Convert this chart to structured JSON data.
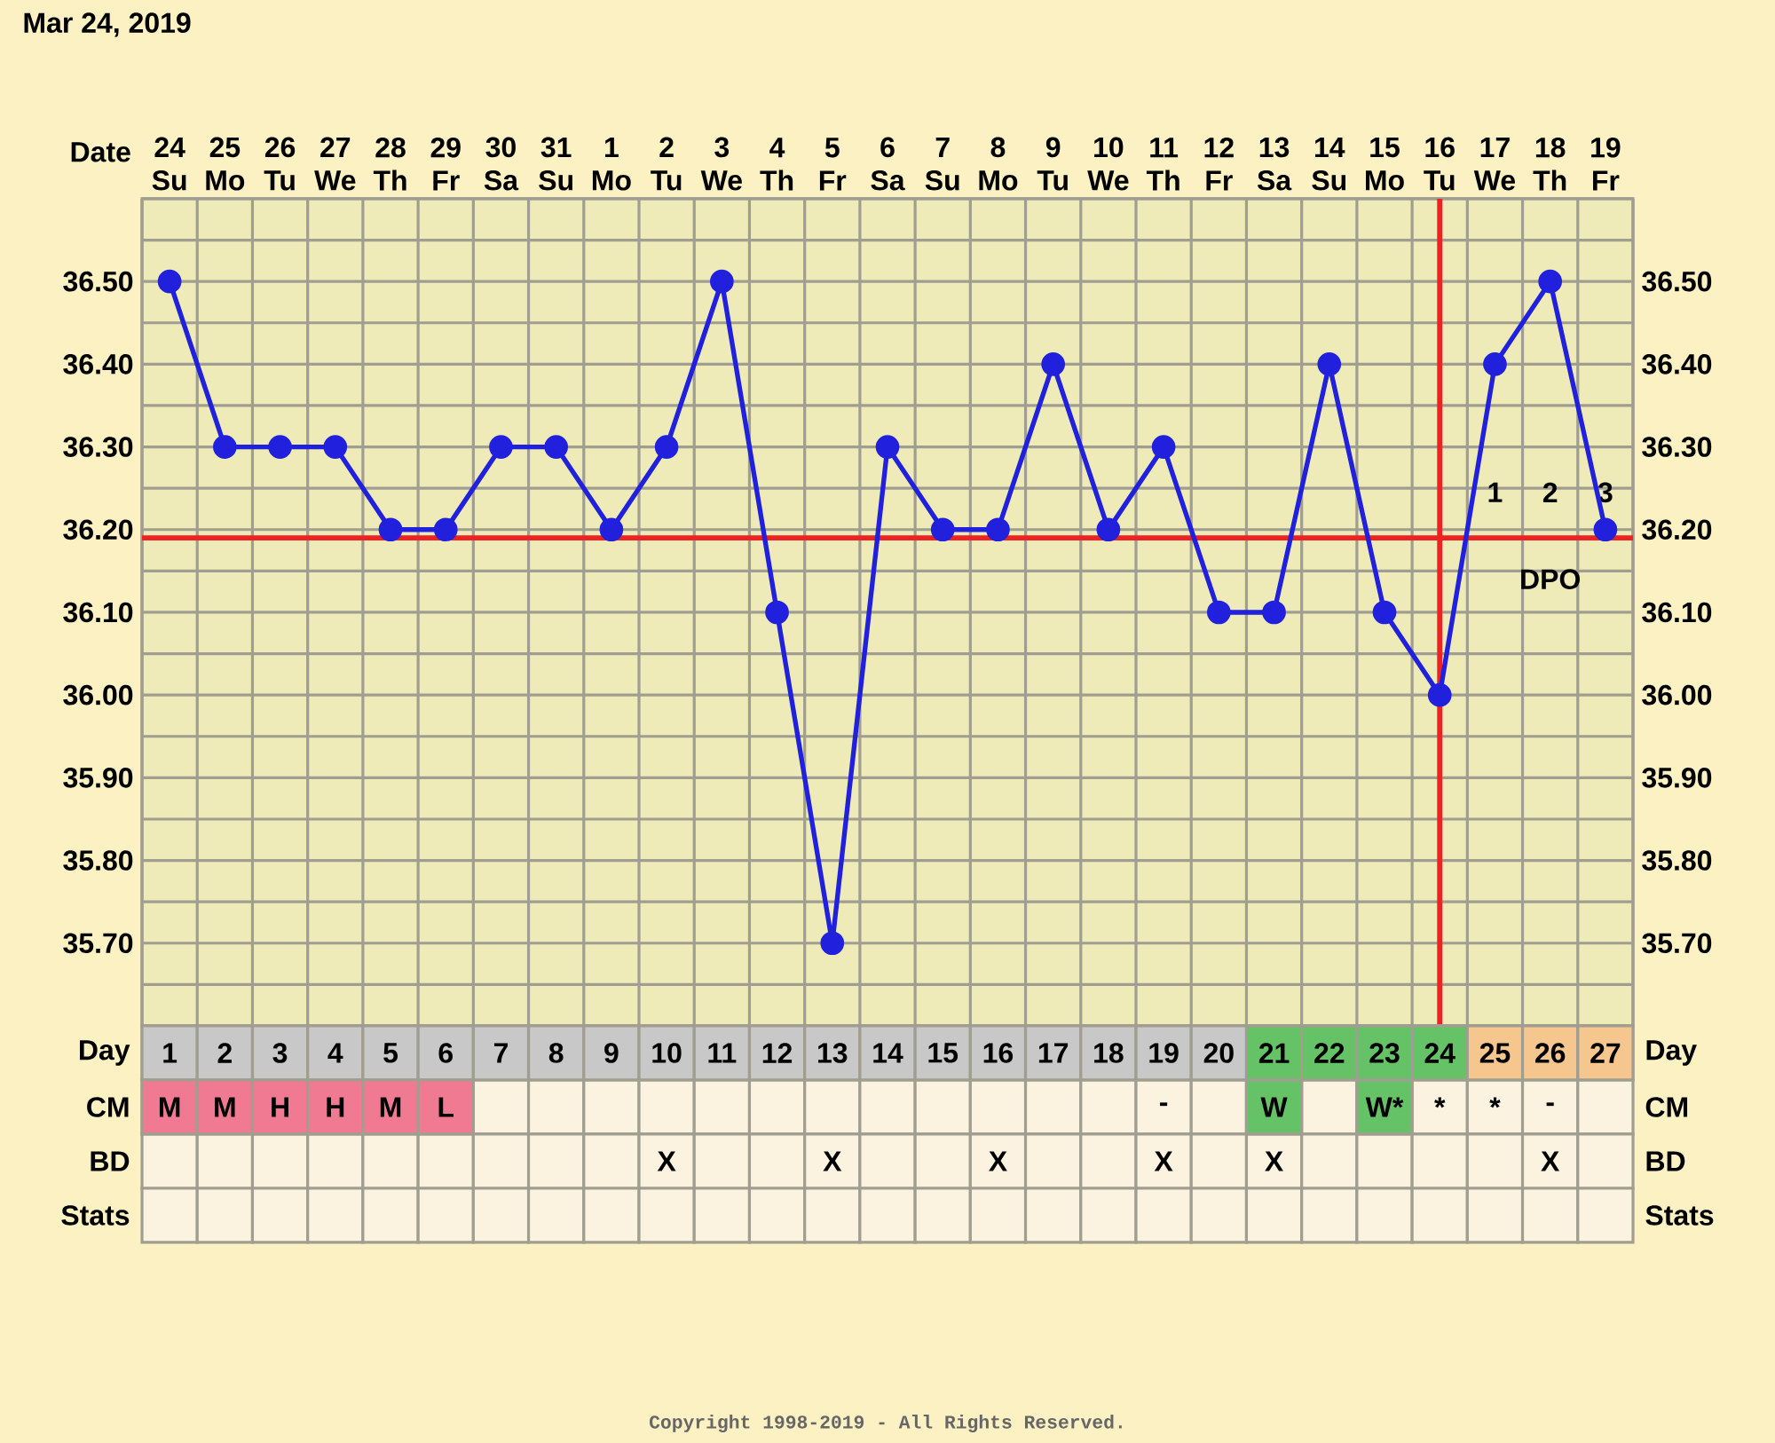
{
  "chart_data": [
    {
      "type": "line",
      "title": "Mar 24, 2019",
      "xlabel": "Date",
      "categories": [
        "24 Su",
        "25 Mo",
        "26 Tu",
        "27 We",
        "28 Th",
        "29 Fr",
        "30 Sa",
        "31 Su",
        "1 Mo",
        "2 Tu",
        "3 We",
        "4 Th",
        "5 Fr",
        "6 Sa",
        "7 Su",
        "8 Mo",
        "9 Tu",
        "10 We",
        "11 Th",
        "12 Fr",
        "13 Sa",
        "14 Su",
        "15 Mo",
        "16 Tu",
        "17 We",
        "18 Th",
        "19 Fr"
      ],
      "values": [
        36.5,
        36.3,
        36.3,
        36.3,
        36.2,
        36.2,
        36.3,
        36.3,
        36.2,
        36.3,
        36.5,
        36.1,
        35.7,
        36.3,
        36.2,
        36.2,
        36.4,
        36.2,
        36.3,
        36.1,
        36.1,
        36.4,
        36.1,
        36.0,
        36.4,
        36.5,
        36.2
      ],
      "color": "#2020dd",
      "marker": "circle",
      "line_style": "solid",
      "ylim": [
        35.6,
        36.6
      ],
      "yticks": [
        {
          "value": 35.7,
          "label": "35.70"
        },
        {
          "value": 35.8,
          "label": "35.80"
        },
        {
          "value": 35.9,
          "label": "35.90"
        },
        {
          "value": 36.0,
          "label": "36.00"
        },
        {
          "value": 36.1,
          "label": "36.10"
        },
        {
          "value": 36.2,
          "label": "36.20"
        },
        {
          "value": 36.3,
          "label": "36.30"
        },
        {
          "value": 36.4,
          "label": "36.40"
        },
        {
          "value": 36.5,
          "label": "36.50"
        }
      ],
      "y2lim": [
        35.6,
        36.6
      ],
      "y2ticks": [
        {
          "value": 35.7,
          "label": "35.70"
        },
        {
          "value": 35.8,
          "label": "35.80"
        },
        {
          "value": 35.9,
          "label": "35.90"
        },
        {
          "value": 36.0,
          "label": "36.00"
        },
        {
          "value": 36.1,
          "label": "36.10"
        },
        {
          "value": 36.2,
          "label": "36.20"
        },
        {
          "value": 36.3,
          "label": "36.30"
        },
        {
          "value": 36.4,
          "label": "36.40"
        },
        {
          "value": 36.5,
          "label": "36.50"
        }
      ],
      "grid": true,
      "ref_lines": [
        {
          "axis": "y",
          "value": 36.19,
          "color": "#ee2222"
        },
        {
          "axis": "x",
          "value": "16 Tu",
          "color": "#ee2222"
        }
      ],
      "annotations": [
        "1",
        "2",
        "3",
        "DPO",
        "Copyright 1998-2019 - All Rights Reserved."
      ]
    },
    {
      "type": "heatmap",
      "categories": [
        "1",
        "2",
        "3",
        "4",
        "5",
        "6",
        "7",
        "8",
        "9",
        "10",
        "11",
        "12",
        "13",
        "14",
        "15",
        "16",
        "17",
        "18",
        "19",
        "20",
        "21",
        "22",
        "23",
        "24",
        "25",
        "26",
        "27"
      ],
      "y_categories": [
        "Day",
        "CM",
        "BD",
        "Stats"
      ],
      "y2_categories": [
        "Day",
        "CM",
        "BD",
        "Stats"
      ],
      "cells": [
        [
          null,
          null,
          null,
          null,
          null,
          null,
          null,
          null,
          null,
          null,
          null,
          null,
          null,
          null,
          null,
          null,
          null,
          null,
          null,
          null,
          null,
          null,
          null,
          null,
          null,
          null,
          null
        ],
        [
          null,
          null,
          null,
          null,
          null,
          null,
          null,
          null,
          null,
          null,
          null,
          null,
          null,
          null,
          null,
          null,
          null,
          null,
          null,
          null,
          null,
          null,
          null,
          null,
          null,
          null,
          null
        ],
        [
          null,
          null,
          null,
          null,
          null,
          null,
          null,
          null,
          null,
          null,
          null,
          null,
          null,
          null,
          null,
          null,
          null,
          null,
          null,
          null,
          null,
          null,
          null,
          null,
          null,
          null,
          null
        ],
        [
          null,
          null,
          null,
          null,
          null,
          null,
          null,
          null,
          null,
          null,
          null,
          null,
          null,
          null,
          null,
          null,
          null,
          null,
          null,
          null,
          null,
          null,
          null,
          null,
          null,
          null,
          null
        ]
      ],
      "cell_labels": [
        [
          null,
          null,
          null,
          null,
          null,
          null,
          null,
          null,
          null,
          null,
          null,
          null,
          null,
          null,
          null,
          null,
          null,
          null,
          null,
          null,
          null,
          null,
          null,
          null,
          null,
          null,
          null
        ],
        [
          "M",
          "M",
          "H",
          "H",
          "M",
          "L",
          null,
          null,
          null,
          null,
          null,
          null,
          null,
          null,
          null,
          null,
          null,
          null,
          "-",
          null,
          "W",
          null,
          "W*",
          "*",
          "*",
          "-",
          null
        ],
        [
          null,
          null,
          null,
          null,
          null,
          null,
          null,
          null,
          null,
          "X",
          null,
          null,
          "X",
          null,
          null,
          "X",
          null,
          null,
          "X",
          null,
          "X",
          null,
          null,
          null,
          null,
          "X",
          null
        ],
        [
          null,
          null,
          null,
          null,
          null,
          null,
          null,
          null,
          null,
          null,
          null,
          null,
          null,
          null,
          null,
          null,
          null,
          null,
          null,
          null,
          null,
          null,
          null,
          null,
          null,
          null,
          null
        ]
      ],
      "colors": [
        [
          "#c8c8c8",
          "#c8c8c8",
          "#c8c8c8",
          "#c8c8c8",
          "#c8c8c8",
          "#c8c8c8",
          "#c8c8c8",
          "#c8c8c8",
          "#c8c8c8",
          "#c8c8c8",
          "#c8c8c8",
          "#c8c8c8",
          "#c8c8c8",
          "#c8c8c8",
          "#c8c8c8",
          "#c8c8c8",
          "#c8c8c8",
          "#c8c8c8",
          "#c8c8c8",
          "#c8c8c8",
          "#66c266",
          "#66c266",
          "#66c266",
          "#66c266",
          "#f5c68e",
          "#f5c68e",
          "#f5c68e"
        ],
        [
          "#f07a92",
          "#f07a92",
          "#f07a92",
          "#f07a92",
          "#f07a92",
          "#f07a92",
          null,
          null,
          null,
          null,
          null,
          null,
          null,
          null,
          null,
          null,
          null,
          null,
          null,
          null,
          "#66c266",
          null,
          "#66c266",
          null,
          null,
          null,
          null
        ],
        [
          null,
          null,
          null,
          null,
          null,
          null,
          null,
          null,
          null,
          null,
          null,
          null,
          null,
          null,
          null,
          null,
          null,
          null,
          null,
          null,
          null,
          null,
          null,
          null,
          null,
          null,
          null
        ],
        [
          null,
          null,
          null,
          null,
          null,
          null,
          null,
          null,
          null,
          null,
          null,
          null,
          null,
          null,
          null,
          null,
          null,
          null,
          null,
          null,
          null,
          null,
          null,
          null,
          null,
          null,
          null
        ]
      ]
    }
  ]
}
